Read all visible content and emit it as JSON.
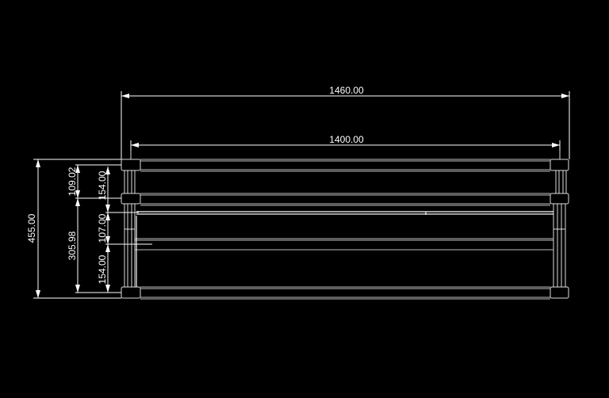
{
  "drawing": {
    "background": "#000000",
    "line_color": "#ffffff",
    "dimensions": {
      "overall_width": "1460.00",
      "inner_width": "1400.00",
      "overall_height": "455.00",
      "upper_segment": "109.02",
      "lower_segment": "305.98",
      "top_spacing": "154.00",
      "middle_spacing": "107.00",
      "bottom_spacing": "154.00"
    }
  }
}
